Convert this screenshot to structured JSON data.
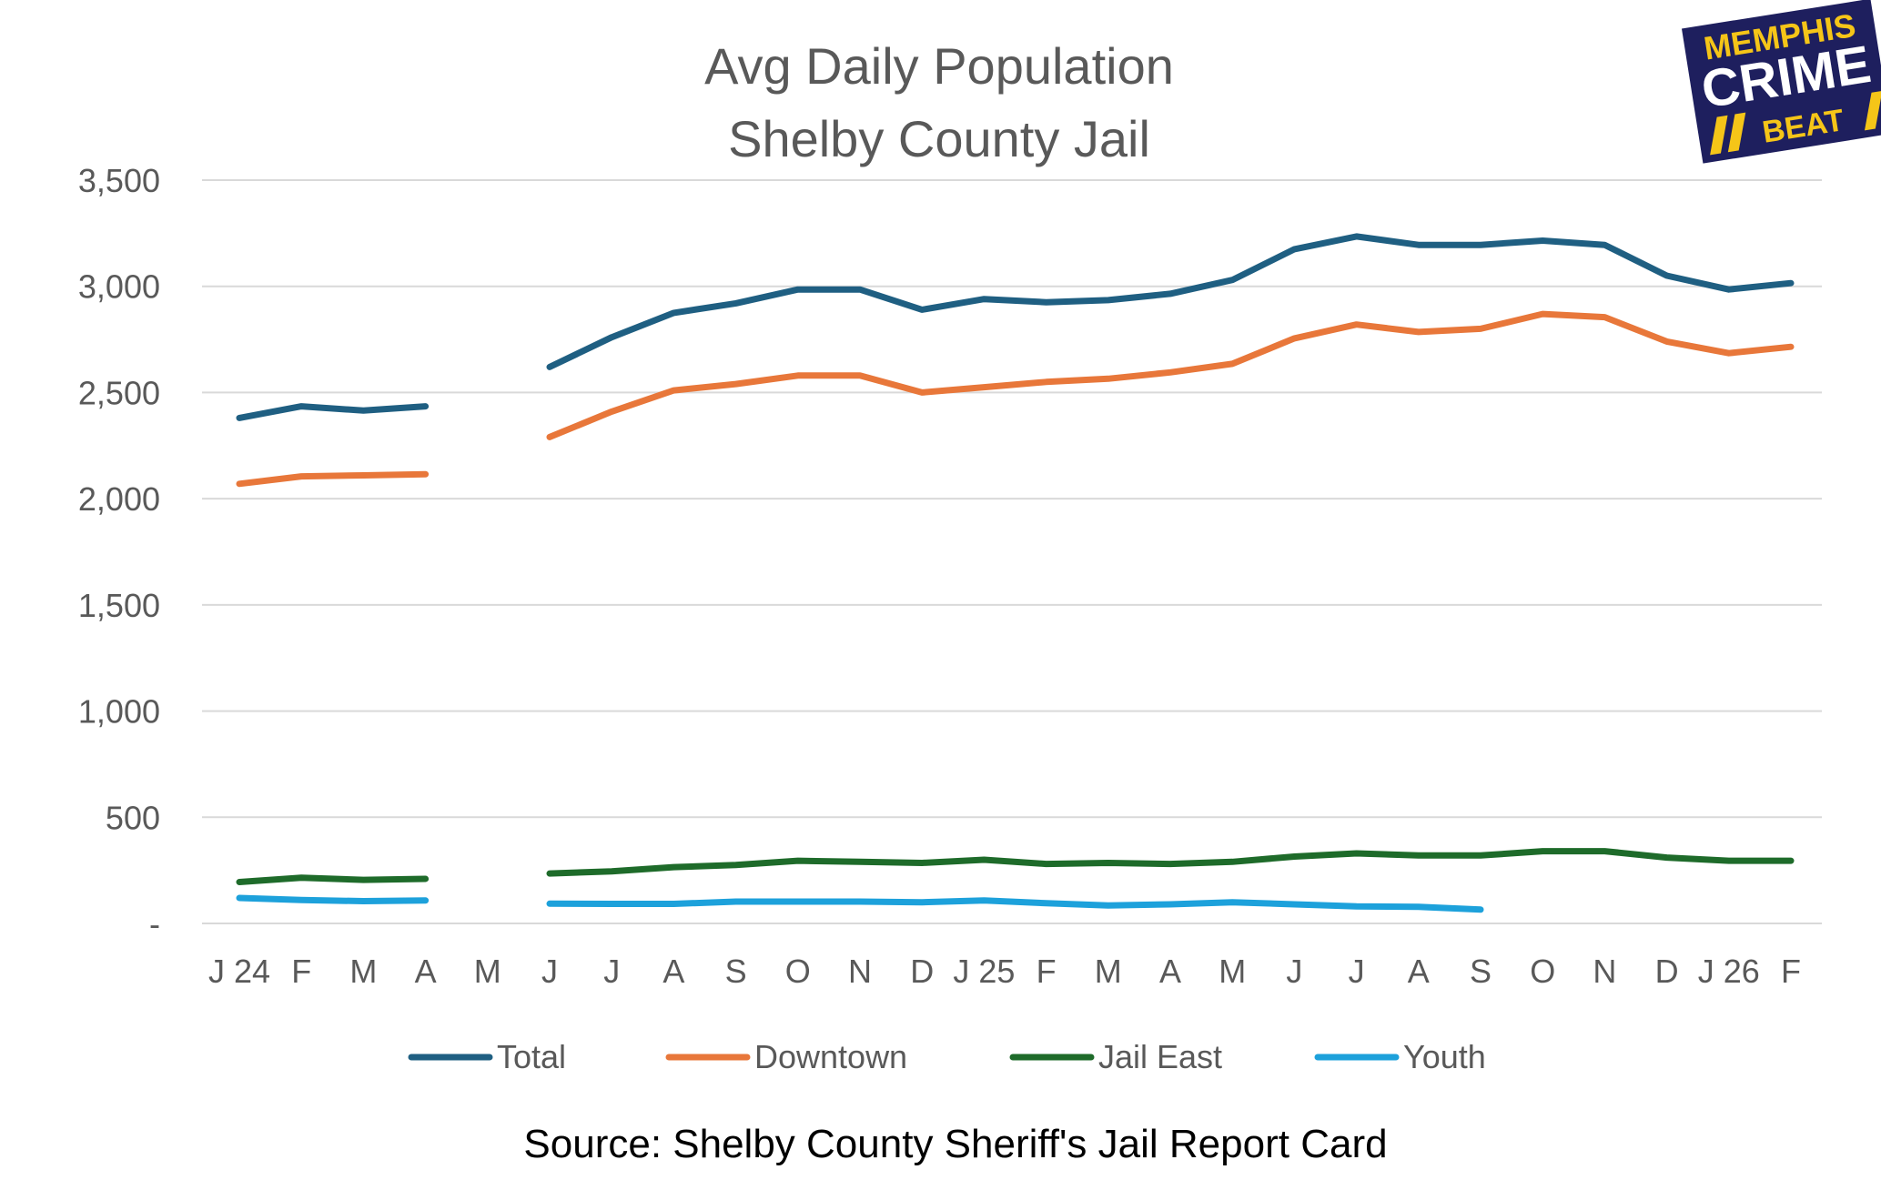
{
  "chart_data": {
    "type": "line",
    "title": "Avg Daily Population",
    "subtitle": "Shelby County Jail",
    "xlabel": "",
    "ylabel": "",
    "ylim": [
      0,
      3500
    ],
    "yticks": [
      0,
      500,
      1000,
      1500,
      2000,
      2500,
      3000,
      3500
    ],
    "ytick_labels": [
      "-",
      "500",
      "1,000",
      "1,500",
      "2,000",
      "2,500",
      "3,000",
      "3,500"
    ],
    "grid": true,
    "legend_position": "bottom",
    "categories": [
      "J 24",
      "F",
      "M",
      "A",
      "M",
      "J",
      "J",
      "A",
      "S",
      "O",
      "N",
      "D",
      "J 25",
      "F",
      "M",
      "A",
      "M",
      "J",
      "J",
      "A",
      "S",
      "O",
      "N",
      "D",
      "J 26",
      "F"
    ],
    "series": [
      {
        "name": "Total",
        "color": "#1F5F82",
        "values": [
          2380,
          2435,
          2415,
          2435,
          null,
          2620,
          2760,
          2875,
          2920,
          2985,
          2985,
          2890,
          2940,
          2925,
          2935,
          2965,
          3030,
          3175,
          3235,
          3195,
          3195,
          3215,
          3195,
          3050,
          2985,
          3015
        ]
      },
      {
        "name": "Downtown",
        "color": "#E8773A",
        "values": [
          2070,
          2105,
          2110,
          2115,
          null,
          2290,
          2410,
          2510,
          2540,
          2580,
          2580,
          2500,
          2525,
          2550,
          2565,
          2595,
          2635,
          2755,
          2820,
          2785,
          2800,
          2870,
          2855,
          2740,
          2685,
          2715
        ]
      },
      {
        "name": "Jail East",
        "color": "#1E6B2A",
        "values": [
          195,
          215,
          205,
          210,
          null,
          235,
          245,
          265,
          275,
          295,
          290,
          285,
          300,
          280,
          285,
          280,
          290,
          315,
          330,
          320,
          320,
          340,
          340,
          310,
          295,
          295
        ]
      },
      {
        "name": "Youth",
        "color": "#1DA1DB",
        "values": [
          120,
          110,
          105,
          108,
          null,
          93,
          92,
          92,
          103,
          103,
          103,
          100,
          108,
          95,
          85,
          90,
          100,
          90,
          80,
          78,
          65,
          null,
          null,
          null,
          null,
          null
        ]
      }
    ],
    "source": "Source: Shelby County Sheriff's Jail Report Card"
  },
  "logo": {
    "line1": "MEMPHIS",
    "line2": "CRIME",
    "line3": "BEAT",
    "bg_color": "#1E1F5E",
    "accent_color": "#F5C518"
  }
}
